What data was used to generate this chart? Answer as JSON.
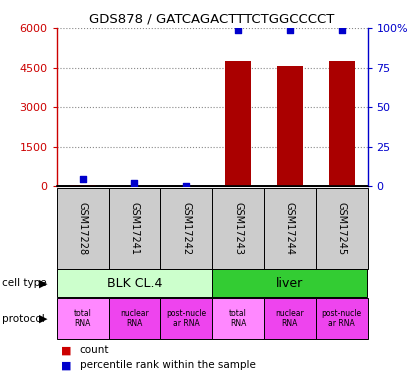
{
  "title": "GDS878 / GATCAGACTTTCTGGCCCCT",
  "samples": [
    "GSM17228",
    "GSM17241",
    "GSM17242",
    "GSM17243",
    "GSM17244",
    "GSM17245"
  ],
  "counts": [
    30,
    0,
    0,
    4750,
    4550,
    4750
  ],
  "percentiles": [
    4.5,
    2.0,
    0,
    99,
    99,
    99
  ],
  "ylim_left": [
    0,
    6000
  ],
  "ylim_right": [
    0,
    100
  ],
  "yticks_left": [
    0,
    1500,
    3000,
    4500,
    6000
  ],
  "yticks_right": [
    0,
    25,
    50,
    75,
    100
  ],
  "ytick_labels_left": [
    "0",
    "1500",
    "3000",
    "4500",
    "6000"
  ],
  "ytick_labels_right": [
    "0",
    "25",
    "50",
    "75",
    "100%"
  ],
  "cell_type_groups": [
    {
      "label": "BLK CL.4",
      "start": 0,
      "end": 3,
      "color": "#ccffcc"
    },
    {
      "label": "liver",
      "start": 3,
      "end": 6,
      "color": "#33cc33"
    }
  ],
  "protocol_labels": [
    "total\nRNA",
    "nuclear\nRNA",
    "post-nucle\nar RNA",
    "total\nRNA",
    "nuclear\nRNA",
    "post-nucle\nar RNA"
  ],
  "protocol_colors": [
    "#ff88ff",
    "#ee44ee",
    "#ee44ee",
    "#ff88ff",
    "#ee44ee",
    "#ee44ee"
  ],
  "bar_color": "#aa0000",
  "dot_color": "#0000cc",
  "left_axis_color": "#cc0000",
  "right_axis_color": "#0000cc",
  "grid_color": "#888888",
  "sample_bg_color": "#cccccc",
  "legend_count_color": "#cc0000",
  "legend_pct_color": "#0000cc",
  "bar_width": 0.5
}
